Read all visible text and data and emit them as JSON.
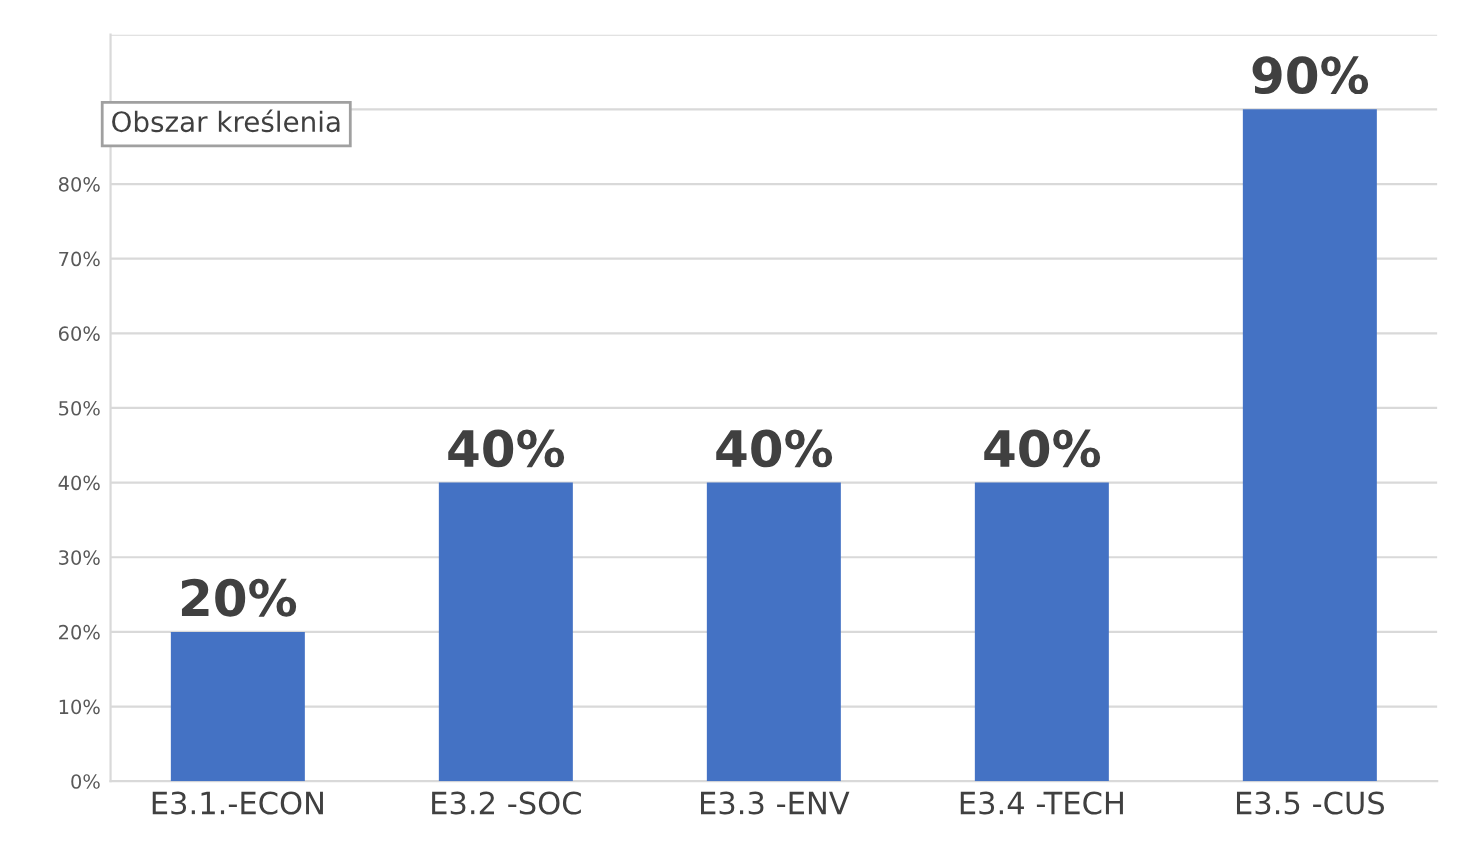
{
  "chart_data": {
    "type": "bar",
    "categories": [
      "E3.1.-ECON",
      "E3.2 -SOC",
      "E3.3 -ENV",
      "E3.4 -TECH",
      "E3.5 -CUS"
    ],
    "values": [
      20,
      40,
      40,
      40,
      90
    ],
    "value_labels": [
      "20%",
      "40%",
      "40%",
      "40%",
      "90%"
    ],
    "color": "#4472c4",
    "ylim": [
      0,
      100
    ],
    "yticks": [
      {
        "value": 0,
        "label": "0%"
      },
      {
        "value": 10,
        "label": "10%"
      },
      {
        "value": 20,
        "label": "20%"
      },
      {
        "value": 30,
        "label": "30%"
      },
      {
        "value": 40,
        "label": "40%"
      },
      {
        "value": 50,
        "label": "50%"
      },
      {
        "value": 60,
        "label": "60%"
      },
      {
        "value": 70,
        "label": "70%"
      },
      {
        "value": 80,
        "label": "80%"
      },
      {
        "value": 90,
        "label": null
      },
      {
        "value": 100,
        "label": null
      }
    ],
    "grid": "y",
    "legend": false,
    "annotations": [
      "Obszar kreślenia"
    ]
  }
}
